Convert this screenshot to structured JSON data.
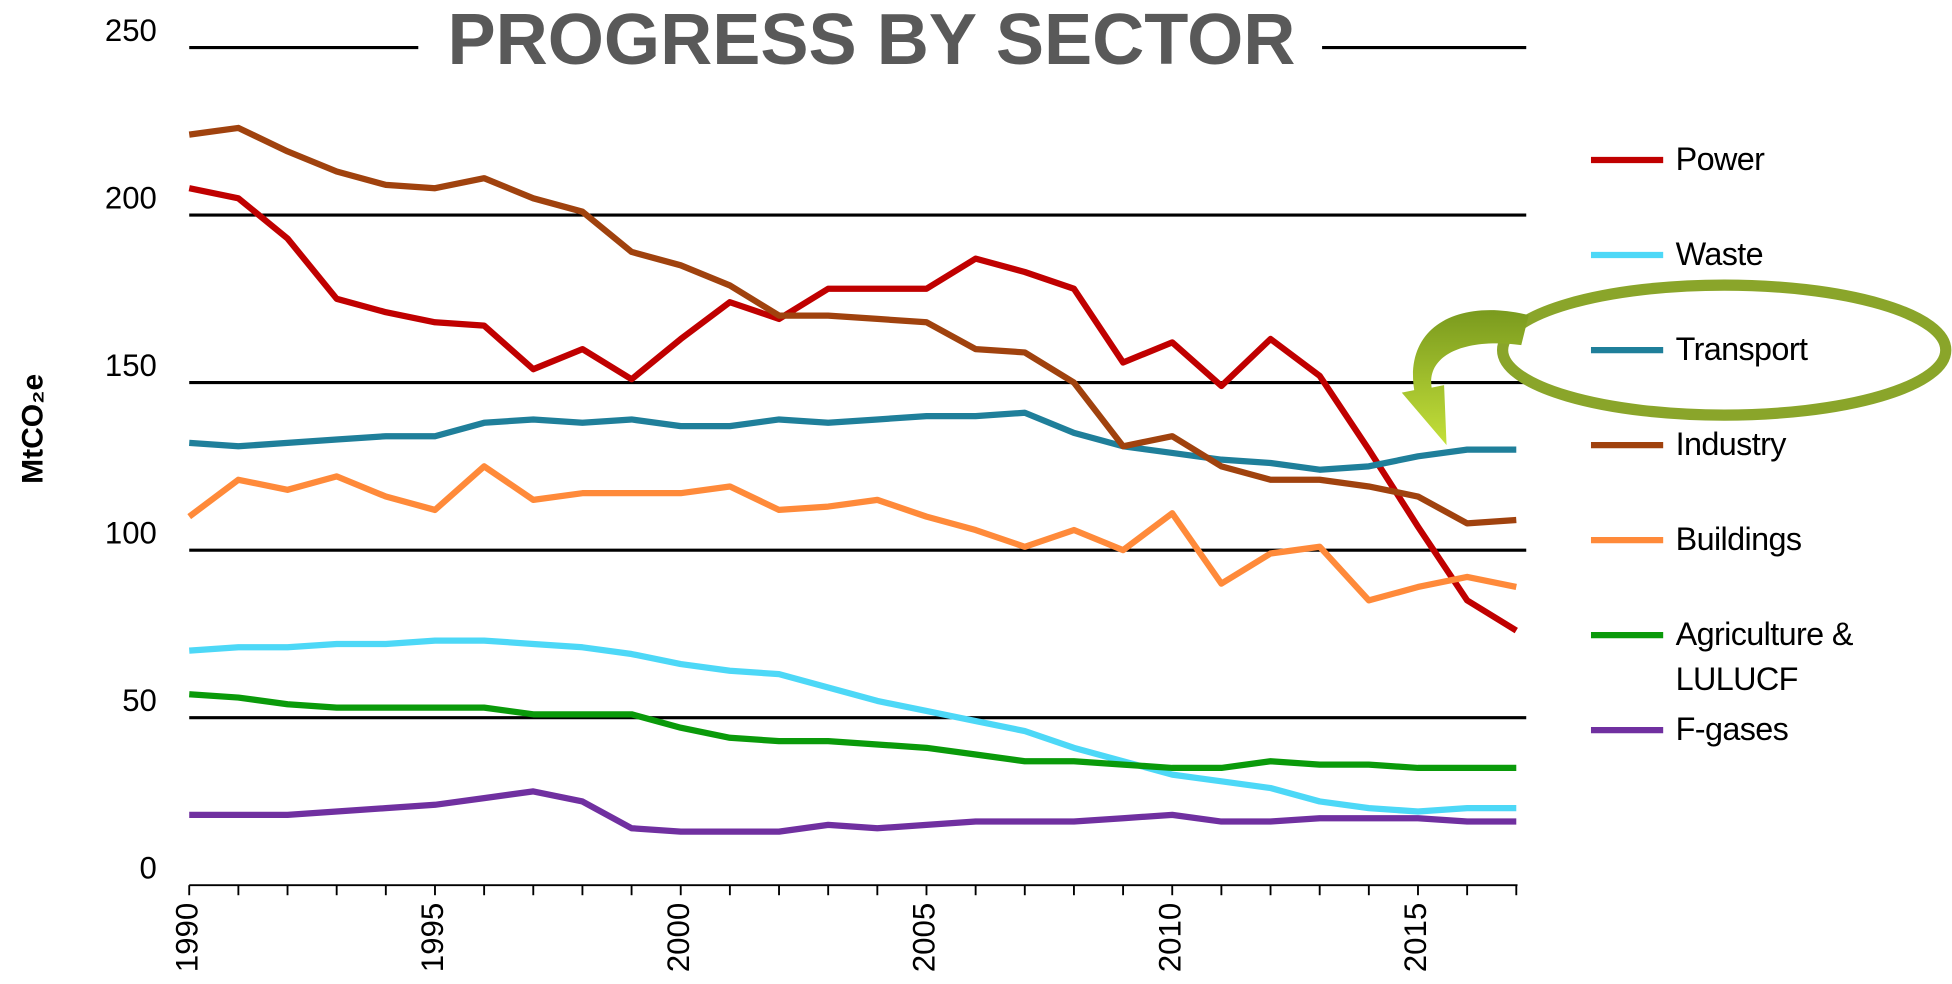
{
  "chart_data": {
    "type": "line",
    "title": "PROGRESS BY SECTOR",
    "y_label": "MtCO₂e",
    "x": [
      1990,
      1991,
      1992,
      1993,
      1994,
      1995,
      1996,
      1997,
      1998,
      1999,
      2000,
      2001,
      2002,
      2003,
      2004,
      2005,
      2006,
      2007,
      2008,
      2009,
      2010,
      2011,
      2012,
      2013,
      2014,
      2015,
      2016,
      2017
    ],
    "xlim": [
      1990,
      2017
    ],
    "xticks": [
      1990,
      1995,
      2000,
      2005,
      2010,
      2015
    ],
    "ylim": [
      0,
      250
    ],
    "yticks": [
      0,
      50,
      100,
      150,
      200,
      250
    ],
    "grid": true,
    "series": [
      {
        "name": "Power",
        "color": "#c00000",
        "values": [
          208,
          205,
          193,
          175,
          171,
          168,
          167,
          154,
          160,
          151,
          163,
          174,
          169,
          178,
          178,
          178,
          187,
          183,
          178,
          156,
          162,
          149,
          163,
          152,
          130,
          107,
          85,
          76
        ]
      },
      {
        "name": "Waste",
        "color": "#4dd8f7",
        "values": [
          70,
          71,
          71,
          72,
          72,
          73,
          73,
          72,
          71,
          69,
          66,
          64,
          63,
          59,
          55,
          52,
          49,
          46,
          41,
          37,
          33,
          31,
          29,
          25,
          23,
          22,
          23,
          23
        ]
      },
      {
        "name": "Transport",
        "color": "#1f7f9a",
        "values": [
          132,
          131,
          132,
          133,
          134,
          134,
          138,
          139,
          138,
          139,
          137,
          137,
          139,
          138,
          139,
          140,
          140,
          141,
          135,
          131,
          129,
          127,
          126,
          124,
          125,
          128,
          130,
          130
        ]
      },
      {
        "name": "Industry",
        "color": "#a0420e",
        "values": [
          224,
          226,
          219,
          213,
          209,
          208,
          211,
          205,
          201,
          189,
          185,
          179,
          170,
          170,
          169,
          168,
          160,
          159,
          150,
          131,
          134,
          125,
          121,
          121,
          119,
          116,
          108,
          109
        ]
      },
      {
        "name": "Buildings",
        "color": "#ff8a3a",
        "values": [
          110,
          121,
          118,
          122,
          116,
          112,
          125,
          115,
          117,
          117,
          117,
          119,
          112,
          113,
          115,
          110,
          106,
          101,
          106,
          100,
          111,
          90,
          99,
          101,
          85,
          89,
          92,
          89
        ]
      },
      {
        "name": "Agriculture & LULUCF",
        "color": "#0a9a0a",
        "values": [
          57,
          56,
          54,
          53,
          53,
          53,
          53,
          51,
          51,
          51,
          47,
          44,
          43,
          43,
          42,
          41,
          39,
          37,
          37,
          36,
          35,
          35,
          37,
          36,
          36,
          35,
          35,
          35
        ]
      },
      {
        "name": "F-gases",
        "color": "#7030a0",
        "values": [
          21,
          21,
          21,
          22,
          23,
          24,
          26,
          28,
          25,
          17,
          16,
          16,
          16,
          18,
          17,
          18,
          19,
          19,
          19,
          20,
          21,
          19,
          19,
          20,
          20,
          20,
          19,
          19
        ]
      }
    ]
  }
}
